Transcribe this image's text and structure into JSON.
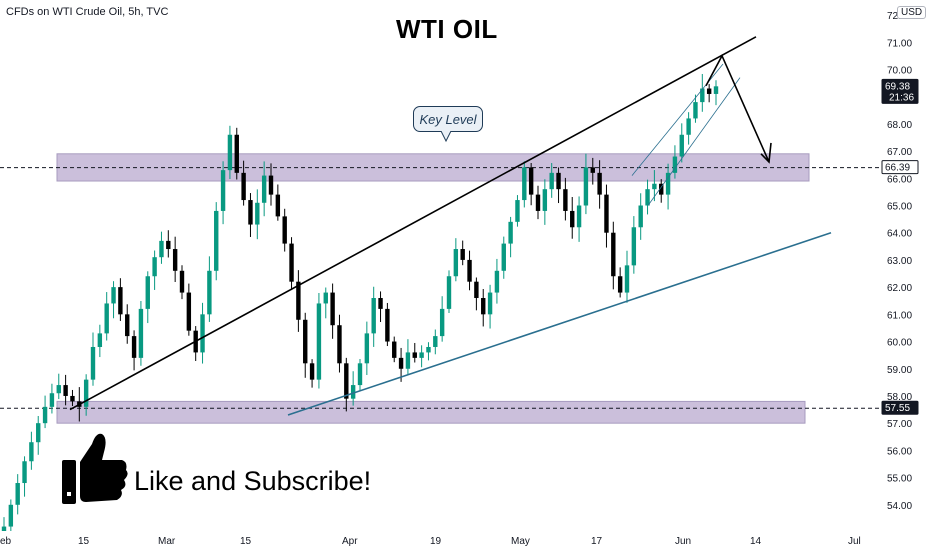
{
  "header": {
    "symbol_text": "CFDs on WTI Crude Oil, 5h, TVC",
    "currency": "USD"
  },
  "title": "WTI OIL",
  "callout": {
    "text": "Key Level"
  },
  "cta": {
    "text": "Like and Subscribe!",
    "icon": "thumbs-up-icon"
  },
  "colors": {
    "up": "#089981",
    "down": "#000000",
    "zone": "#b9a9cf",
    "trendline": "#000000",
    "support_line": "#2a6f8f",
    "badge": "#131722"
  },
  "chart_data": {
    "type": "candlestick",
    "ylim": [
      53.0,
      72.7
    ],
    "y_ticks": [
      "54.00",
      "55.00",
      "56.00",
      "57.00",
      "58.00",
      "59.00",
      "60.00",
      "61.00",
      "62.00",
      "63.00",
      "64.00",
      "65.00",
      "66.00",
      "67.00",
      "68.00",
      "69.00",
      "70.00",
      "71.00",
      "72.00"
    ],
    "y_tick_values": [
      54,
      55,
      56,
      57,
      58,
      59,
      60,
      61,
      62,
      63,
      64,
      65,
      66,
      67,
      68,
      69,
      70,
      71,
      72
    ],
    "x_ticks": [
      "eb",
      "15",
      "Mar",
      "15",
      "Apr",
      "19",
      "May",
      "17",
      "Jun",
      "14",
      "Jul"
    ],
    "price_labels": [
      {
        "label": "66.39",
        "value": 66.39,
        "style": "outline"
      },
      {
        "label": "57.55",
        "value": 57.55,
        "style": "filled"
      },
      {
        "label": "69.38",
        "value": 69.38,
        "sub": "21:36",
        "style": "filled"
      }
    ],
    "key_level_zone": [
      65.9,
      66.9
    ],
    "support_zone": [
      57.0,
      57.8
    ],
    "horizontal_levels": [
      66.39,
      57.55
    ],
    "closes": [
      53.2,
      54.0,
      54.8,
      55.6,
      56.3,
      57.0,
      57.6,
      58.1,
      58.4,
      58.0,
      57.8,
      57.6,
      58.6,
      59.8,
      60.3,
      61.4,
      62.0,
      61.0,
      60.2,
      59.4,
      61.2,
      62.4,
      63.1,
      63.7,
      63.4,
      62.6,
      61.8,
      60.4,
      59.6,
      61.0,
      62.6,
      64.8,
      66.3,
      67.6,
      66.2,
      65.2,
      64.3,
      65.1,
      66.1,
      65.4,
      64.6,
      63.6,
      62.2,
      60.8,
      59.2,
      58.6,
      61.4,
      61.8,
      60.6,
      59.2,
      57.9,
      58.4,
      59.2,
      60.3,
      61.6,
      61.2,
      60.0,
      59.4,
      59.0,
      59.6,
      59.4,
      59.6,
      59.8,
      60.2,
      61.2,
      62.4,
      63.4,
      63.0,
      62.2,
      61.6,
      61.0,
      61.8,
      62.6,
      63.6,
      64.4,
      65.2,
      66.4,
      65.4,
      64.8,
      65.6,
      66.2,
      65.6,
      64.8,
      64.2,
      65.0,
      66.4,
      66.2,
      65.4,
      64.0,
      62.4,
      61.8,
      62.8,
      64.2,
      65.0,
      65.6,
      65.8,
      65.4,
      66.2,
      66.8,
      67.6,
      68.2,
      68.8,
      69.3,
      69.1,
      69.38
    ],
    "annotations": [
      "Key Level"
    ]
  }
}
